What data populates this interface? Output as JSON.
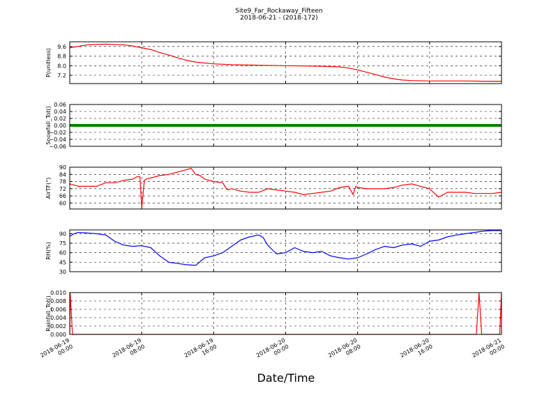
{
  "figure": {
    "title_line1": "Site9_Far_Rockaway_Fifteen",
    "title_line2": "2018-06-21 - (2018-172)",
    "xlabel": "Date/Time",
    "x_ticks": [
      {
        "t": 0,
        "line1": "2018-06-19",
        "line2": "00:00"
      },
      {
        "t": 8,
        "line1": "2018-06-19",
        "line2": "08:00"
      },
      {
        "t": 16,
        "line1": "2018-06-19",
        "line2": "16:00"
      },
      {
        "t": 24,
        "line1": "2018-06-20",
        "line2": "00:00"
      },
      {
        "t": 32,
        "line1": "2018-06-20",
        "line2": "08:00"
      },
      {
        "t": 40,
        "line1": "2018-06-20",
        "line2": "16:00"
      },
      {
        "t": 48,
        "line1": "2018-06-21",
        "line2": "00:00"
      }
    ],
    "x_range": [
      0,
      48
    ]
  },
  "chart_data": [
    {
      "type": "line",
      "ylabel": "P(unitless)",
      "color": "#ff0000",
      "ylim": [
        6.5,
        10.0
      ],
      "yticks": [
        7.2,
        8.0,
        8.8,
        9.6
      ],
      "ytick_labels": [
        "7.2",
        "8.0",
        "8.8",
        "9.6"
      ],
      "grid": true,
      "x": [
        0,
        2,
        4,
        6,
        7,
        8,
        9,
        10,
        11,
        12,
        13,
        14,
        16,
        18,
        20,
        22,
        24,
        26,
        28,
        30,
        31,
        32,
        33,
        34,
        35,
        36,
        37,
        38,
        40,
        42,
        44,
        46,
        48
      ],
      "y": [
        9.5,
        9.75,
        9.8,
        9.75,
        9.65,
        9.5,
        9.35,
        9.1,
        8.9,
        8.65,
        8.45,
        8.3,
        8.15,
        8.08,
        8.05,
        8.02,
        8.0,
        7.98,
        7.95,
        7.9,
        7.8,
        7.65,
        7.45,
        7.25,
        7.05,
        6.9,
        6.8,
        6.75,
        6.72,
        6.72,
        6.72,
        6.7,
        6.7
      ]
    },
    {
      "type": "line",
      "ylabel": "Snowfall_Tot()",
      "color": "#008000",
      "ylim": [
        -0.06,
        0.06
      ],
      "yticks": [
        -0.06,
        -0.04,
        -0.02,
        0.0,
        0.02,
        0.04,
        0.06
      ],
      "ytick_labels": [
        "−0.06",
        "−0.04",
        "−0.02",
        "0.00",
        "0.02",
        "0.04",
        "0.06"
      ],
      "grid": true,
      "x": [
        0,
        48
      ],
      "y": [
        0.0,
        0.0
      ]
    },
    {
      "type": "line",
      "ylabel": "AirTF(°)",
      "color": "#ff0000",
      "ylim": [
        55,
        90
      ],
      "yticks": [
        60,
        66,
        72,
        78,
        84,
        90
      ],
      "ytick_labels": [
        "60",
        "66",
        "72",
        "78",
        "84",
        "90"
      ],
      "grid": true,
      "x": [
        0,
        0.5,
        1,
        2,
        3,
        4,
        5,
        6,
        7,
        7.5,
        7.8,
        8.0,
        8.3,
        8.5,
        9,
        10,
        11,
        12,
        13,
        13.5,
        14,
        14.5,
        15,
        16,
        17,
        17.5,
        18,
        19,
        20,
        21,
        22,
        23,
        24,
        25,
        26,
        27,
        28,
        29,
        30,
        31,
        31.5,
        31.8,
        32,
        33,
        34,
        35,
        36,
        37,
        38,
        39,
        40,
        41,
        42,
        43,
        44,
        45,
        46,
        47,
        48
      ],
      "y": [
        76,
        75,
        74,
        74,
        74,
        77,
        77,
        79,
        80,
        82,
        82,
        56,
        79,
        80,
        81,
        83,
        84,
        86,
        88,
        89,
        84,
        83,
        80,
        78,
        77,
        71,
        72,
        70,
        69,
        69,
        72,
        71,
        70,
        69,
        67,
        68,
        69,
        70,
        73,
        74,
        67,
        74,
        73,
        72,
        72,
        72,
        73,
        75,
        76,
        74,
        72,
        65,
        69,
        69,
        69,
        68,
        68,
        68,
        69
      ]
    },
    {
      "type": "line",
      "ylabel": "RH(%)",
      "color": "#0000ff",
      "ylim": [
        30,
        96
      ],
      "yticks": [
        30,
        45,
        60,
        75,
        90
      ],
      "ytick_labels": [
        "30",
        "45",
        "60",
        "75",
        "90"
      ],
      "grid": true,
      "x": [
        0,
        0.5,
        1,
        2,
        3,
        4,
        5,
        6,
        7,
        8,
        9,
        10,
        11,
        12,
        13,
        14,
        15,
        16,
        17,
        18,
        19,
        20,
        21,
        21.5,
        22,
        23,
        24,
        25,
        26,
        27,
        28,
        29,
        30,
        31,
        32,
        33,
        34,
        35,
        36,
        37,
        38,
        39,
        40,
        41,
        42,
        43,
        44,
        45,
        46,
        47,
        48
      ],
      "y": [
        86,
        90,
        92,
        91,
        90,
        88,
        78,
        72,
        70,
        71,
        68,
        55,
        45,
        43,
        41,
        40,
        52,
        55,
        60,
        70,
        80,
        85,
        88,
        84,
        72,
        58,
        60,
        68,
        62,
        60,
        62,
        55,
        52,
        50,
        52,
        58,
        65,
        70,
        68,
        72,
        74,
        70,
        78,
        80,
        85,
        88,
        90,
        92,
        94,
        95,
        95
      ]
    },
    {
      "type": "line",
      "ylabel": "Rainfall_Tot()",
      "color": "#ff0000",
      "ylim": [
        0.0,
        0.01
      ],
      "yticks": [
        0.0,
        0.002,
        0.004,
        0.006,
        0.008,
        0.01
      ],
      "ytick_labels": [
        "0.000",
        "0.002",
        "0.004",
        "0.006",
        "0.008",
        "0.010"
      ],
      "grid": true,
      "x": [
        0,
        0.05,
        0.3,
        0.5,
        45,
        45.2,
        45.5,
        45.8,
        47.8,
        48
      ],
      "y": [
        0.0,
        0.01,
        0.0,
        0.0,
        0.0,
        0.0,
        0.01,
        0.0,
        0.0,
        0.01
      ]
    }
  ]
}
